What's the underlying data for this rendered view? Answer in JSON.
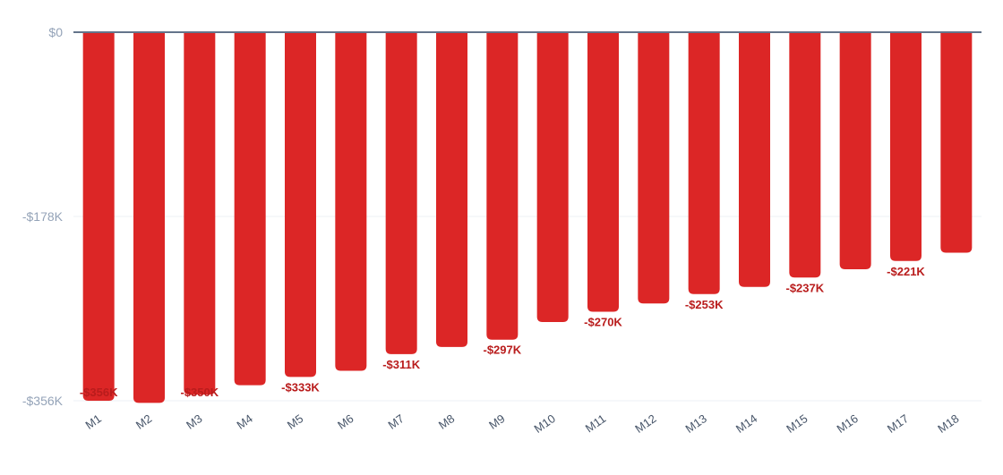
{
  "chart_data": {
    "type": "bar",
    "categories": [
      "M1",
      "M2",
      "M3",
      "M4",
      "M5",
      "M6",
      "M7",
      "M8",
      "M9",
      "M10",
      "M11",
      "M12",
      "M13",
      "M14",
      "M15",
      "M16",
      "M17",
      "M18"
    ],
    "values": [
      -356,
      -358,
      -350,
      -341,
      -333,
      -327,
      -311,
      -304,
      -297,
      -280,
      -270,
      -262,
      -253,
      -246,
      -237,
      -229,
      -221,
      -213
    ],
    "unit": "K",
    "ylim": [
      -356,
      0
    ],
    "yticks": [
      "$0",
      "-$178K",
      "-$356K"
    ],
    "ytick_values": [
      0,
      -178,
      -356
    ],
    "data_labels": [
      "-$356K",
      "",
      "-$350K",
      "",
      "-$333K",
      "",
      "-$311K",
      "",
      "-$297K",
      "",
      "-$270K",
      "",
      "-$253K",
      "",
      "-$237K",
      "",
      "-$221K",
      ""
    ],
    "bar_color": "#dc2626",
    "label_color": "#b91c1c",
    "axis_color": "#64748b",
    "grid": true,
    "title": "",
    "xlabel": "",
    "ylabel": ""
  }
}
